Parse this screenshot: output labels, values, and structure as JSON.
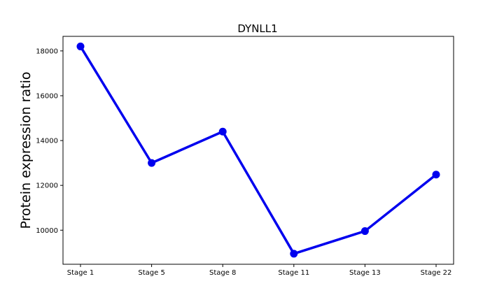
{
  "chart_data": {
    "type": "line",
    "title": "DYNLL1",
    "xlabel": "",
    "ylabel": "Protein expression ratio",
    "categories": [
      "Stage 1",
      "Stage 5",
      "Stage 8",
      "Stage 11",
      "Stage 13",
      "Stage 22"
    ],
    "series": [
      {
        "values": [
          18200,
          13000,
          14400,
          8950,
          9960,
          12480
        ],
        "color": "#0000ee"
      }
    ],
    "ylim": [
      8480,
      18650
    ],
    "yticks": [
      10000,
      12000,
      14000,
      16000,
      18000
    ],
    "grid": false,
    "legend": "none"
  }
}
